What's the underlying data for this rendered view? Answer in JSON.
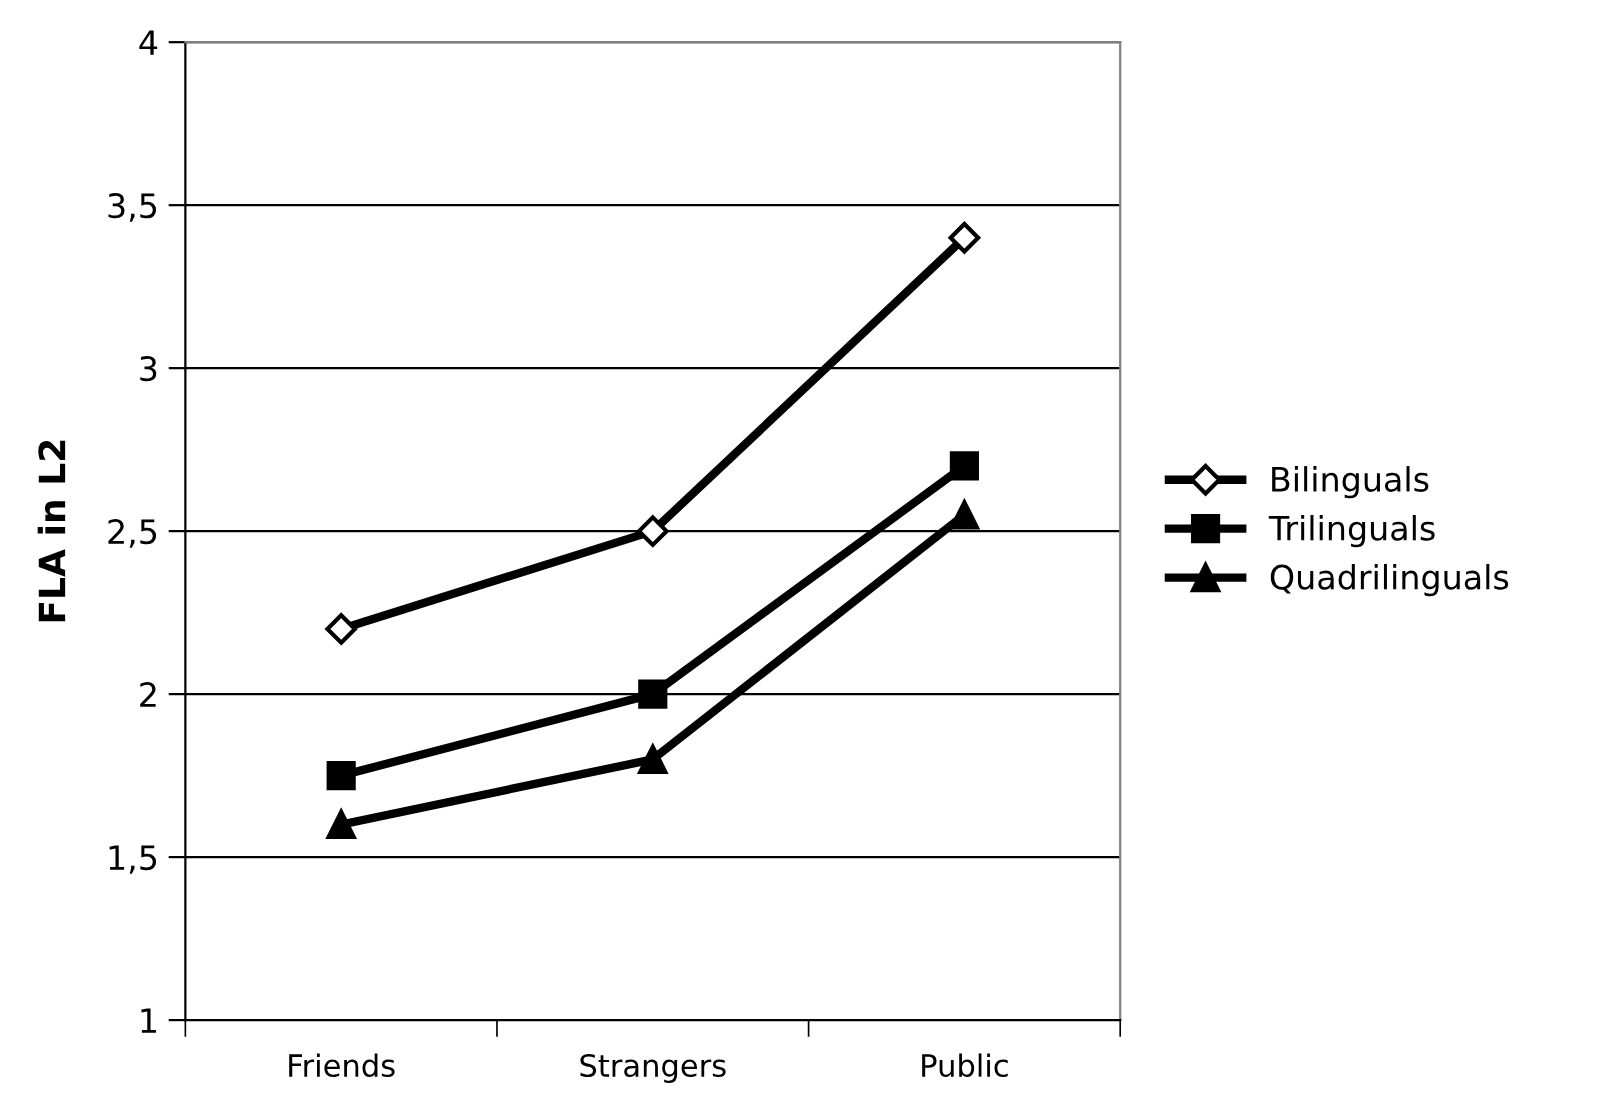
{
  "chart_data": {
    "type": "line",
    "ylabel": "FLA in L2",
    "categories": [
      "Friends",
      "Strangers",
      "Public"
    ],
    "series": [
      {
        "name": "Bilinguals",
        "color": "#000000",
        "marker": "diamond",
        "values": [
          2.2,
          2.5,
          3.4
        ]
      },
      {
        "name": "Trilinguals",
        "color": "#000000",
        "marker": "square",
        "values": [
          1.75,
          2.0,
          2.7
        ]
      },
      {
        "name": "Quadrilinguals",
        "color": "#000000",
        "marker": "triangle",
        "values": [
          1.6,
          1.8,
          2.55
        ]
      }
    ],
    "ylim": [
      1,
      4
    ],
    "yticks": [
      1,
      {
        "value": 1.5,
        "label": "1,5"
      },
      2,
      {
        "value": 2.5,
        "label": "2,5"
      },
      3,
      {
        "value": 3.5,
        "label": "3,5"
      },
      4
    ],
    "grid": "y",
    "legend": "right",
    "line_style": "solid"
  }
}
